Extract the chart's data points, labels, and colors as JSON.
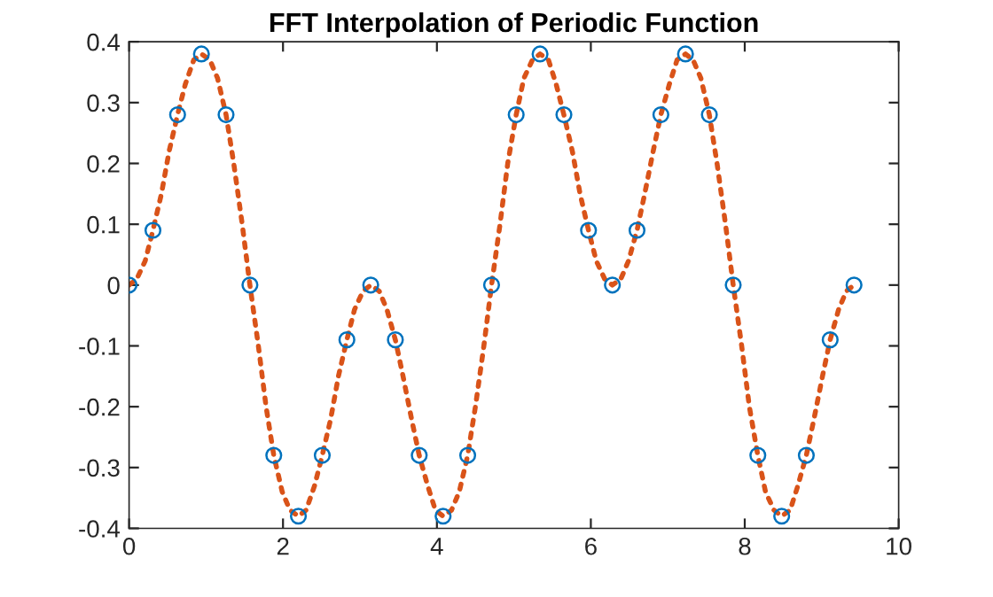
{
  "chart_data": {
    "type": "scatter",
    "title": "FFT Interpolation of Periodic Function",
    "xlim": [
      0,
      10
    ],
    "xticks": [
      0,
      2,
      4,
      6,
      8,
      10
    ],
    "ylim": [
      -0.4,
      0.4
    ],
    "yticks": [
      -0.4,
      -0.3,
      -0.2,
      -0.1,
      0,
      0.1,
      0.2,
      0.3,
      0.4
    ],
    "grid": false,
    "series": [
      {
        "marker": "circle",
        "color": "#0072bd",
        "x": [
          0,
          0.31,
          0.63,
          0.94,
          1.26,
          1.57,
          1.88,
          2.2,
          2.51,
          2.83,
          3.14,
          3.46,
          3.77,
          4.08,
          4.4,
          4.71,
          5.03,
          5.34,
          5.65,
          5.97,
          6.28,
          6.6,
          6.91,
          7.23,
          7.54,
          7.85,
          8.17,
          8.48,
          8.8,
          9.11,
          9.42
        ],
        "values": [
          0,
          0.09,
          0.28,
          0.38,
          0.28,
          0,
          -0.28,
          -0.38,
          -0.28,
          -0.09,
          0,
          -0.09,
          -0.28,
          -0.38,
          -0.28,
          0,
          0.28,
          0.38,
          0.28,
          0.09,
          0,
          0.09,
          0.28,
          0.38,
          0.28,
          0,
          -0.28,
          -0.38,
          -0.28,
          -0.09,
          0
        ]
      },
      {
        "type": "line",
        "marker": "none",
        "line_style": "dotted",
        "color": "#d95319",
        "x": [
          0,
          0.1,
          0.21,
          0.31,
          0.42,
          0.52,
          0.63,
          0.73,
          0.84,
          0.94,
          1.05,
          1.15,
          1.26,
          1.36,
          1.47,
          1.57,
          1.68,
          1.78,
          1.88,
          1.99,
          2.09,
          2.2,
          2.3,
          2.41,
          2.51,
          2.62,
          2.72,
          2.83,
          2.93,
          3.04,
          3.14,
          3.25,
          3.35,
          3.46,
          3.56,
          3.67,
          3.77,
          3.88,
          3.98,
          4.08,
          4.19,
          4.29,
          4.4,
          4.5,
          4.61,
          4.71,
          4.82,
          4.92,
          5.03,
          5.13,
          5.24,
          5.34,
          5.45,
          5.55,
          5.65,
          5.76,
          5.86,
          5.97,
          6.07,
          6.18,
          6.28,
          6.39,
          6.49,
          6.6,
          6.7,
          6.81,
          6.91,
          7.02,
          7.12,
          7.23,
          7.33,
          7.43,
          7.54,
          7.64,
          7.75,
          7.85,
          7.96,
          8.06,
          8.17,
          8.27,
          8.38,
          8.48,
          8.59,
          8.69,
          8.8,
          8.9,
          9.01,
          9.11,
          9.22,
          9.32,
          9.42
        ],
        "values": [
          0,
          0.01,
          0.04,
          0.09,
          0.15,
          0.22,
          0.28,
          0.33,
          0.37,
          0.38,
          0.37,
          0.34,
          0.28,
          0.2,
          0.1,
          0,
          -0.1,
          -0.2,
          -0.28,
          -0.34,
          -0.37,
          -0.38,
          -0.37,
          -0.33,
          -0.28,
          -0.22,
          -0.15,
          -0.09,
          -0.04,
          -0.01,
          0,
          -0.01,
          -0.04,
          -0.09,
          -0.15,
          -0.22,
          -0.28,
          -0.33,
          -0.37,
          -0.38,
          -0.37,
          -0.34,
          -0.28,
          -0.2,
          -0.1,
          0,
          0.1,
          0.2,
          0.28,
          0.34,
          0.37,
          0.38,
          0.37,
          0.33,
          0.28,
          0.22,
          0.15,
          0.09,
          0.04,
          0.01,
          0,
          0.01,
          0.04,
          0.09,
          0.15,
          0.22,
          0.28,
          0.33,
          0.37,
          0.38,
          0.37,
          0.34,
          0.28,
          0.2,
          0.1,
          0,
          -0.1,
          -0.2,
          -0.28,
          -0.34,
          -0.37,
          -0.38,
          -0.37,
          -0.33,
          -0.28,
          -0.22,
          -0.15,
          -0.09,
          -0.04,
          -0.01,
          0
        ]
      }
    ]
  }
}
